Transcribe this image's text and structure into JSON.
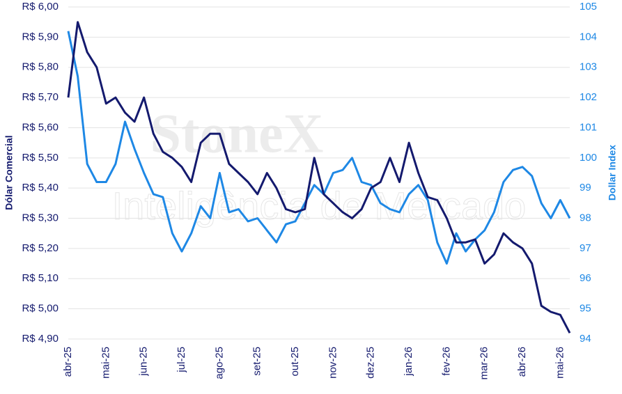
{
  "chart_data": {
    "type": "line",
    "watermark": {
      "brand": "StoneX",
      "tagline": "Inteligência de Mercado"
    },
    "y_label": "Dólar Comercial",
    "y2_label": "Dollar Index",
    "categories": [
      "abr-25",
      null,
      null,
      null,
      "mai-25",
      null,
      null,
      null,
      "jun-25",
      null,
      null,
      null,
      "jul-25",
      null,
      null,
      null,
      "ago-25",
      null,
      null,
      null,
      "set-25",
      null,
      null,
      null,
      "out-25",
      null,
      null,
      null,
      "nov-25",
      null,
      null,
      null,
      "dez-25",
      null,
      null,
      null,
      "jan-26",
      null,
      null,
      null,
      "fev-26",
      null,
      null,
      null,
      "mar-26",
      null,
      null,
      null,
      "abr-26",
      null,
      null,
      null,
      "mai-26",
      null
    ],
    "series": [
      {
        "name": "Dólar Comercial",
        "color": "#141a6e",
        "axis": "y",
        "values": [
          5.7,
          5.95,
          5.85,
          5.8,
          5.68,
          5.7,
          5.65,
          5.62,
          5.7,
          5.58,
          5.52,
          5.5,
          5.47,
          5.42,
          5.55,
          5.58,
          5.58,
          5.48,
          5.45,
          5.42,
          5.38,
          5.45,
          5.4,
          5.33,
          5.32,
          5.33,
          5.5,
          5.38,
          5.35,
          5.32,
          5.3,
          5.33,
          5.4,
          5.42,
          5.5,
          5.42,
          5.55,
          5.45,
          5.37,
          5.36,
          5.3,
          5.22,
          5.22,
          5.23,
          5.15,
          5.18,
          5.25,
          5.22,
          5.2,
          5.15,
          5.01,
          4.99,
          4.98,
          4.92
        ]
      },
      {
        "name": "Dollar Index",
        "color": "#1e88e5",
        "axis": "y2",
        "values": [
          104.2,
          102.7,
          99.8,
          99.2,
          99.2,
          99.8,
          101.2,
          100.3,
          99.5,
          98.8,
          98.7,
          97.5,
          96.9,
          97.5,
          98.4,
          98.0,
          99.5,
          98.2,
          98.3,
          97.9,
          98.0,
          97.6,
          97.2,
          97.8,
          97.9,
          98.5,
          99.1,
          98.8,
          99.5,
          99.6,
          100.0,
          99.2,
          99.1,
          98.5,
          98.3,
          98.2,
          98.8,
          99.1,
          98.6,
          97.2,
          96.5,
          97.5,
          96.9,
          97.3,
          97.6,
          98.2,
          99.2,
          99.6,
          99.7,
          99.4,
          98.5,
          98.0,
          98.6,
          98.0
        ]
      }
    ],
    "ylim": [
      4.9,
      6.0
    ],
    "yticks": [
      {
        "value": 4.9,
        "label": "R$ 4,90"
      },
      {
        "value": 5.0,
        "label": "R$ 5,00"
      },
      {
        "value": 5.1,
        "label": "R$ 5,10"
      },
      {
        "value": 5.2,
        "label": "R$ 5,20"
      },
      {
        "value": 5.3,
        "label": "R$ 5,30"
      },
      {
        "value": 5.4,
        "label": "R$ 5,40"
      },
      {
        "value": 5.5,
        "label": "R$ 5,50"
      },
      {
        "value": 5.6,
        "label": "R$ 5,60"
      },
      {
        "value": 5.7,
        "label": "R$ 5,70"
      },
      {
        "value": 5.8,
        "label": "R$ 5,80"
      },
      {
        "value": 5.9,
        "label": "R$ 5,90"
      },
      {
        "value": 6.0,
        "label": "R$ 6,00"
      }
    ],
    "y2lim": [
      94,
      105
    ],
    "y2ticks": [
      94,
      95,
      96,
      97,
      98,
      99,
      100,
      101,
      102,
      103,
      104,
      105
    ],
    "grid": true
  }
}
